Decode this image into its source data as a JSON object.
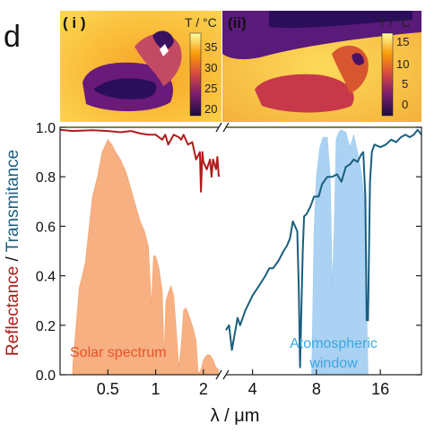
{
  "panel_label": "d",
  "thermal": {
    "left": {
      "label": "( i )",
      "unit": "T / °C",
      "ticks": [
        "35",
        "30",
        "25",
        "20"
      ]
    },
    "right": {
      "label": "(ii)",
      "unit": "T / °C",
      "ticks": [
        "15",
        "10",
        "5",
        "0"
      ]
    }
  },
  "colors": {
    "reflectance": "#b01c1c",
    "transmittance": "#1a5e7e",
    "solar_fill": "#f4a26c",
    "atmos_fill": "#9ccaf0",
    "solar_text": "#e8532a",
    "atmos_text": "#3aa7e0"
  },
  "chart_data": {
    "type": "line",
    "xlabel": "λ / μm",
    "ylabel_part1": "Reflectance",
    "ylabel_sep": " / ",
    "ylabel_part2": "Transmitance",
    "ylim": [
      0,
      1.0
    ],
    "yticks": [
      "0.0",
      "0.2",
      "0.4",
      "0.6",
      "0.8",
      "1.0"
    ],
    "axis_break": "log wavelength axis broken between 2.5 μm and 3 μm",
    "xticks_left": [
      "0.5",
      "1",
      "2"
    ],
    "xticks_right": [
      "4",
      "8",
      "16"
    ],
    "xlim_left": [
      0.25,
      2.5
    ],
    "xlim_right": [
      3,
      25
    ],
    "annotations": {
      "solar": "Solar spectrum",
      "atmos_line1": "Atomospheric",
      "atmos_line2": "window"
    },
    "series": [
      {
        "name": "Reflectance",
        "x": [
          0.25,
          0.3,
          0.4,
          0.5,
          0.6,
          0.7,
          0.8,
          0.9,
          1.0,
          1.1,
          1.15,
          1.2,
          1.25,
          1.3,
          1.4,
          1.45,
          1.5,
          1.6,
          1.7,
          1.8,
          1.9,
          1.93,
          1.97,
          2.0,
          2.1,
          2.2,
          2.25,
          2.3,
          2.4,
          2.45,
          2.5
        ],
        "y": [
          0.99,
          0.985,
          0.988,
          0.985,
          0.98,
          0.985,
          0.975,
          0.97,
          0.97,
          0.95,
          0.97,
          0.93,
          0.95,
          0.97,
          0.96,
          0.95,
          0.97,
          0.93,
          0.94,
          0.87,
          0.9,
          0.74,
          0.9,
          0.86,
          0.83,
          0.87,
          0.8,
          0.87,
          0.83,
          0.88,
          0.8
        ]
      },
      {
        "name": "Transmittance",
        "x": [
          3.0,
          3.1,
          3.2,
          3.4,
          3.5,
          3.7,
          3.9,
          4.0,
          4.3,
          4.6,
          4.8,
          5.0,
          5.3,
          5.6,
          5.8,
          6.0,
          6.2,
          6.5,
          6.6,
          6.7,
          6.9,
          7.0,
          7.2,
          7.5,
          7.8,
          8.2,
          8.5,
          9.0,
          9.5,
          10,
          10.5,
          11,
          11.5,
          12,
          12.5,
          13,
          13.3,
          13.6,
          13.8,
          14.0,
          14.3,
          14.6,
          15,
          16,
          17,
          18,
          19,
          20,
          21,
          22,
          23,
          24,
          25
        ],
        "y": [
          0.18,
          0.2,
          0.1,
          0.23,
          0.2,
          0.26,
          0.3,
          0.32,
          0.36,
          0.4,
          0.43,
          0.43,
          0.46,
          0.5,
          0.52,
          0.55,
          0.62,
          0.58,
          0.36,
          0.03,
          0.5,
          0.64,
          0.65,
          0.68,
          0.72,
          0.72,
          0.77,
          0.8,
          0.8,
          0.81,
          0.78,
          0.84,
          0.85,
          0.87,
          0.86,
          0.89,
          0.9,
          0.72,
          0.22,
          0.22,
          0.78,
          0.9,
          0.93,
          0.92,
          0.93,
          0.95,
          0.94,
          0.96,
          0.97,
          0.96,
          0.97,
          0.99,
          0.97
        ]
      },
      {
        "name": "Solar spectrum",
        "x": [
          0.3,
          0.33,
          0.36,
          0.4,
          0.43,
          0.46,
          0.5,
          0.53,
          0.56,
          0.6,
          0.65,
          0.7,
          0.75,
          0.8,
          0.85,
          0.9,
          0.94,
          0.97,
          1.0,
          1.05,
          1.1,
          1.13,
          1.16,
          1.2,
          1.25,
          1.3,
          1.35,
          1.4,
          1.45,
          1.5,
          1.55,
          1.6,
          1.7,
          1.8,
          1.85,
          1.9,
          1.95,
          2.0,
          2.1,
          2.2,
          2.3,
          2.4,
          2.5
        ],
        "y": [
          0.03,
          0.35,
          0.45,
          0.72,
          0.8,
          0.9,
          0.95,
          0.93,
          0.9,
          0.87,
          0.82,
          0.75,
          0.68,
          0.62,
          0.58,
          0.52,
          0.28,
          0.48,
          0.48,
          0.43,
          0.34,
          0.08,
          0.3,
          0.33,
          0.36,
          0.32,
          0.18,
          0.03,
          0.12,
          0.26,
          0.27,
          0.25,
          0.2,
          0.14,
          0.01,
          0.01,
          0.03,
          0.06,
          0.08,
          0.08,
          0.06,
          0.03,
          0.02
        ]
      },
      {
        "name": "Atmospheric window",
        "x": [
          7.6,
          7.8,
          8.0,
          8.3,
          8.6,
          9.0,
          9.3,
          9.5,
          9.7,
          9.9,
          10.2,
          10.5,
          11.0,
          11.5,
          12.0,
          12.5,
          13.0,
          13.5,
          14.0
        ],
        "y": [
          0.0,
          0.58,
          0.8,
          0.92,
          0.96,
          0.96,
          0.8,
          0.35,
          0.6,
          0.95,
          0.98,
          0.99,
          0.98,
          0.92,
          0.97,
          0.9,
          0.82,
          0.7,
          0.0
        ]
      }
    ]
  }
}
